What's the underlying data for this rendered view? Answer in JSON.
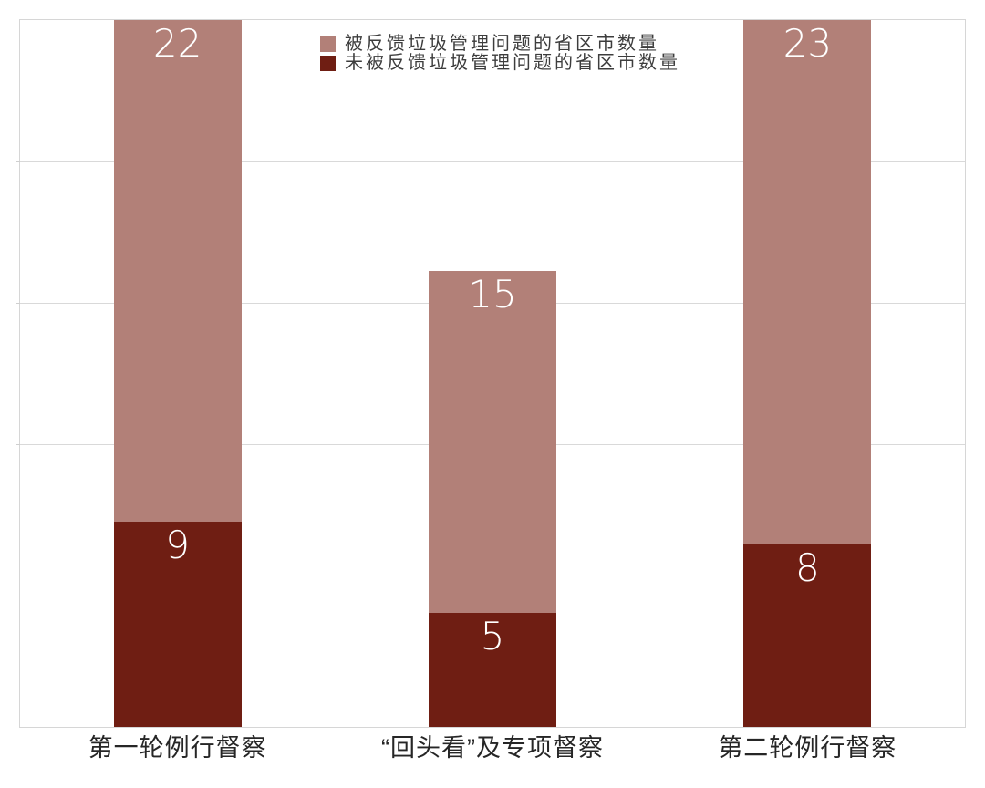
{
  "chart_data": {
    "type": "bar",
    "stacked": true,
    "title": "",
    "categories": [
      "第一轮例行督察",
      "“回头看”及专项督察",
      "第二轮例行督察"
    ],
    "series": [
      {
        "name": "被反馈垃圾管理问题的省区市数量",
        "stack_position": "top",
        "color": "#b28078",
        "values": [
          22,
          15,
          23
        ]
      },
      {
        "name": "未被反馈垃圾管理问题的省区市数量",
        "stack_position": "bottom",
        "color": "#6f1e13",
        "values": [
          9,
          5,
          8
        ]
      }
    ],
    "totals": [
      31,
      20,
      31
    ],
    "ylim": [
      0,
      31
    ],
    "xlabel": "",
    "ylabel": "",
    "gridlines": {
      "visible": true,
      "horizontal_divisions": 5,
      "color": "#d9d9d9"
    },
    "legend_position": "top-center",
    "value_labels": {
      "position": "inside-top",
      "color": "#ffffff"
    }
  },
  "style": {
    "background": "#ffffff",
    "plot_border_color": "#d6d6d6",
    "category_label_color": "#262626",
    "legend_text_color": "#3d3d3d"
  }
}
